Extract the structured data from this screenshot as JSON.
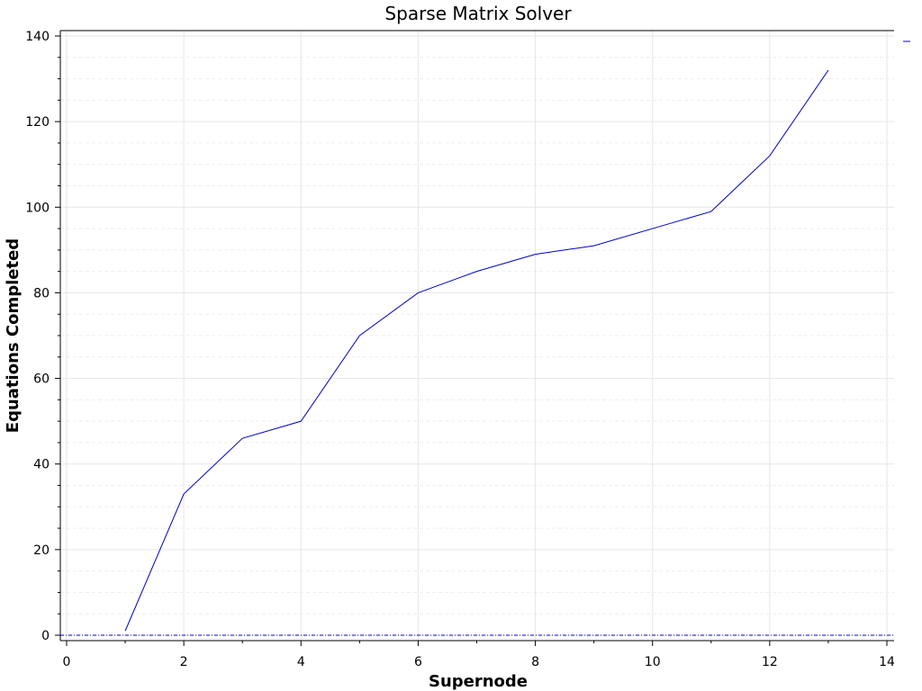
{
  "chart_data": {
    "type": "line",
    "title": "Sparse Matrix Solver",
    "xlabel": "Supernode",
    "ylabel": "Equations Completed",
    "xlim": [
      0,
      14
    ],
    "ylim": [
      0,
      140
    ],
    "xticks": [
      0,
      2,
      4,
      6,
      8,
      10,
      12,
      14
    ],
    "yticks": [
      0,
      20,
      40,
      60,
      80,
      100,
      120,
      140
    ],
    "grid": true,
    "legend": "top-right",
    "series": [
      {
        "color": "#0000cc",
        "x": [
          1,
          2,
          3,
          4,
          5,
          6,
          7,
          8,
          9,
          10,
          11,
          12,
          13
        ],
        "y": [
          1,
          33,
          46,
          50,
          70,
          80,
          85,
          89,
          91,
          95,
          99,
          112,
          132
        ]
      }
    ],
    "reference_line": {
      "y": 0,
      "style": "dash-dot",
      "color": "#0000cc"
    }
  }
}
